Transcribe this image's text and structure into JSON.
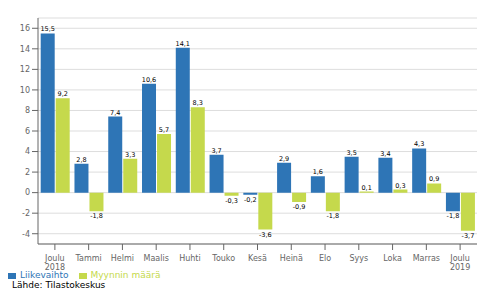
{
  "chart_data": {
    "type": "bar",
    "categories": [
      "Joulu\n2018",
      "Tammi",
      "Helmi",
      "Maalis",
      "Huhti",
      "Touko",
      "Kesä",
      "Heinä",
      "Elo",
      "Syys",
      "Loka",
      "Marras",
      "Joulu\n2019"
    ],
    "series": [
      {
        "name": "Liikevaihto",
        "color": "#2e75b6",
        "values": [
          15.5,
          2.8,
          7.4,
          10.6,
          14.1,
          3.7,
          -0.2,
          2.9,
          1.6,
          3.5,
          3.4,
          4.3,
          -1.8
        ],
        "value_labels": [
          "15,5",
          "2,8",
          "7,4",
          "10,6",
          "14,1",
          "3,7",
          "-0,2",
          "2,9",
          "1,6",
          "3,5",
          "3,4",
          "4,3",
          "-1,8"
        ]
      },
      {
        "name": "Myynnin määrä",
        "color": "#c5d94c",
        "values": [
          9.2,
          -1.8,
          3.3,
          5.7,
          8.3,
          -0.3,
          -3.6,
          -0.9,
          -1.8,
          0.1,
          0.3,
          0.9,
          -3.7
        ],
        "value_labels": [
          "9,2",
          "-1,8",
          "3,3",
          "5,7",
          "8,3",
          "-0,3",
          "-3,6",
          "-0,9",
          "-1,8",
          "0,1",
          "0,3",
          "0,9",
          "-3,7"
        ]
      }
    ],
    "ylim": [
      -5,
      17
    ],
    "yticks": [
      -4,
      -2,
      0,
      2,
      4,
      6,
      8,
      10,
      12,
      14,
      16
    ],
    "grid": true,
    "legend": "lower left",
    "data_labels": true,
    "annotations": [
      "Lähde: Tilastokeskus"
    ]
  }
}
